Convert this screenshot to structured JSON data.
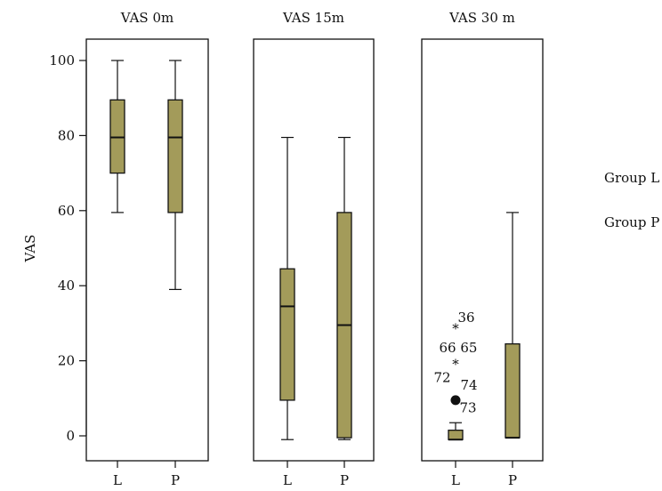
{
  "chart_data": {
    "type": "boxplot",
    "ylabel": "VAS",
    "ylim": [
      0,
      100
    ],
    "yticks": [
      0,
      20,
      40,
      60,
      80,
      100
    ],
    "panels": [
      {
        "title": "VAS 0m",
        "groups": [
          {
            "name": "L",
            "min": 59.5,
            "q1": 70,
            "median": 79.5,
            "q3": 89.5,
            "max": 100,
            "outliers": []
          },
          {
            "name": "P",
            "min": 39,
            "q1": 59.5,
            "median": 79.5,
            "q3": 89.5,
            "max": 100,
            "outliers": []
          }
        ]
      },
      {
        "title": "VAS 15m",
        "groups": [
          {
            "name": "L",
            "min": -1,
            "q1": 9.5,
            "median": 34.5,
            "q3": 44.5,
            "max": 79.5,
            "outliers": []
          },
          {
            "name": "P",
            "min": -1,
            "q1": -0.5,
            "median": 29.5,
            "q3": 59.5,
            "max": 79.5,
            "outliers": []
          }
        ]
      },
      {
        "title": "VAS 30 m",
        "groups": [
          {
            "name": "L",
            "min": -1,
            "q1": -1,
            "median": -1,
            "q3": 1.5,
            "max": 3.5,
            "outliers": [
              {
                "value": 29.5,
                "marker": "star",
                "labels": [
                  "36"
                ]
              },
              {
                "value": 20,
                "marker": "star",
                "labels": [
                  "66 65",
                  "72"
                ]
              },
              {
                "value": 9.5,
                "marker": "circle",
                "labels": [
                  "74",
                  "73"
                ]
              }
            ]
          },
          {
            "name": "P",
            "min": -0.5,
            "q1": -0.5,
            "median": -0.5,
            "q3": 24.5,
            "max": 59.5,
            "outliers": []
          }
        ]
      }
    ],
    "legend": [
      "Group L",
      "Group P"
    ]
  }
}
